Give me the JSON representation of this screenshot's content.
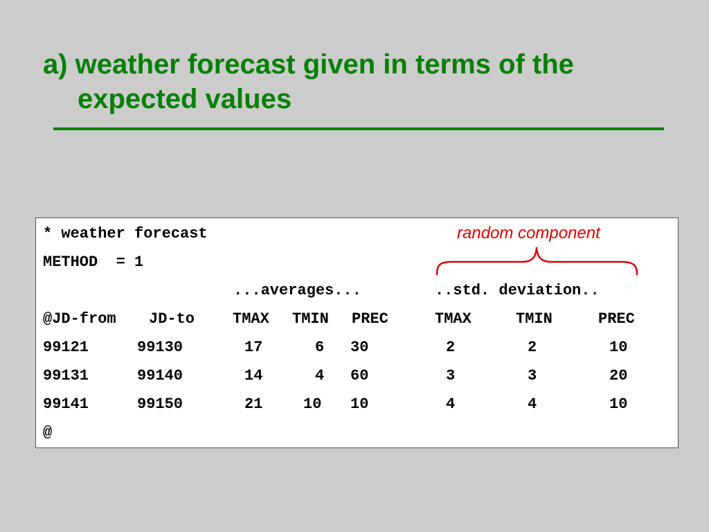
{
  "title": {
    "line1": "a) weather forecast given in terms of the",
    "line2": "expected values"
  },
  "annotation": {
    "label": "random component",
    "color": "#e00000"
  },
  "code": {
    "line1": "* weather forecast",
    "line2": "METHOD  = 1",
    "averages": "...averages...",
    "std_deviation": "..std. deviation..",
    "headers": [
      "@JD-from",
      "JD-to",
      "TMAX",
      "TMIN",
      "PREC",
      "TMAX",
      "TMIN",
      "PREC"
    ],
    "rows": [
      [
        "99121",
        "99130",
        "17",
        "6",
        "30",
        "2",
        "2",
        "10"
      ],
      [
        "99131",
        "99140",
        "14",
        "4",
        "60",
        "3",
        "3",
        "20"
      ],
      [
        "99141",
        "99150",
        "21",
        "10",
        "10",
        "4",
        "4",
        "10"
      ]
    ],
    "end": "@"
  },
  "colors": {
    "background": "#cccccc",
    "title": "#008000",
    "box": "#ffffff"
  }
}
